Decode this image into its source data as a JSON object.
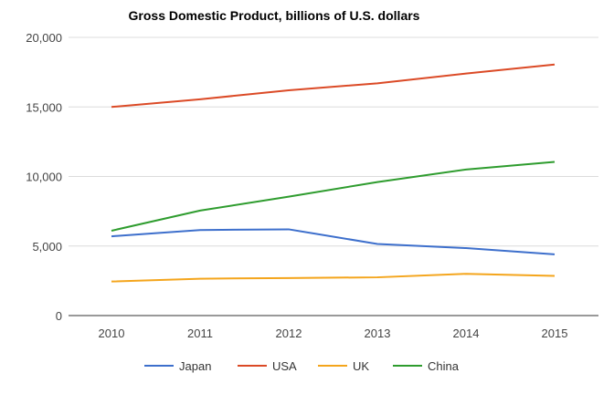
{
  "chart_data": {
    "type": "line",
    "title": "Gross Domestic Product, billions of U.S. dollars",
    "xlabel": "",
    "ylabel": "",
    "categories": [
      "2010",
      "2011",
      "2012",
      "2013",
      "2014",
      "2015"
    ],
    "ylim": [
      0,
      20000
    ],
    "yticks": [
      0,
      5000,
      10000,
      15000,
      20000
    ],
    "ytick_labels": [
      "0",
      "5,000",
      "10,000",
      "15,000",
      "20,000"
    ],
    "grid": true,
    "legend_position": "bottom",
    "series": [
      {
        "name": "Japan",
        "color": "#3d6fcc",
        "values": [
          5700,
          6150,
          6200,
          5150,
          4850,
          4400
        ]
      },
      {
        "name": "USA",
        "color": "#db4a26",
        "values": [
          15000,
          15550,
          16200,
          16700,
          17400,
          18050
        ]
      },
      {
        "name": "UK",
        "color": "#f4a51c",
        "values": [
          2450,
          2650,
          2700,
          2750,
          3000,
          2850
        ]
      },
      {
        "name": "China",
        "color": "#2e9c2e",
        "values": [
          6100,
          7550,
          8550,
          9600,
          10500,
          11050
        ]
      }
    ]
  }
}
